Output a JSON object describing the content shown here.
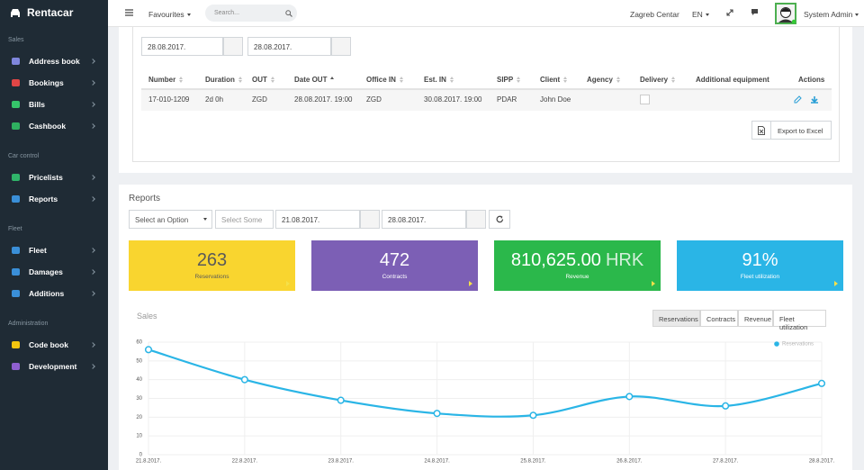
{
  "sidebar": {
    "brand": "Rentacar",
    "sections": [
      {
        "title": "Sales",
        "items": [
          "Address book",
          "Bookings",
          "Bills",
          "Cashbook"
        ]
      },
      {
        "title": "Car control",
        "items": [
          "Pricelists",
          "Reports"
        ]
      },
      {
        "title": "Fleet",
        "items": [
          "Fleet",
          "Damages",
          "Additions"
        ]
      },
      {
        "title": "Administration",
        "items": [
          "Code book",
          "Development"
        ]
      }
    ]
  },
  "topbar": {
    "favourites": "Favourites",
    "search_placeholder": "Search...",
    "location": "Zagreb Centar",
    "language": "EN",
    "user": "System Admin"
  },
  "bookings": {
    "date_from": "28.08.2017.",
    "date_to": "28.08.2017.",
    "table": {
      "columns": [
        "Number",
        "Duration",
        "OUT",
        "Date OUT",
        "Office IN",
        "Est. IN",
        "SIPP",
        "Client",
        "Agency",
        "Delivery",
        "Additional equipment",
        "Actions"
      ],
      "rows": [
        [
          "17-010-1209",
          "2d 0h",
          "ZGD",
          "28.08.2017. 19:00",
          "ZGD",
          "30.08.2017. 19:00",
          "PDAR",
          "John Doe"
        ]
      ]
    },
    "export": "Export to Excel"
  },
  "reports": {
    "title": "Reports",
    "filter_option": "Select an Option",
    "filter_some": "Select Some",
    "date_from": "21.08.2017.",
    "date_to": "28.08.2017.",
    "tiles": [
      {
        "value": "263",
        "label": "Reservations",
        "color": "#f9d52f",
        "text_color": "#5a5a5a"
      },
      {
        "value": "472",
        "label": "Contracts",
        "color": "#7c5fb5",
        "text_color": "#ffffff"
      },
      {
        "value": "810,625.00",
        "unit": "HRK",
        "label": "Revenue",
        "color": "#2bb84b",
        "text_color": "#ffffff"
      },
      {
        "value": "91%",
        "label": "Fleet utilization",
        "color": "#2ab5e6",
        "text_color": "#ffffff"
      }
    ],
    "sales_title": "Sales",
    "tabs": [
      "Reservations",
      "Contracts",
      "Revenue",
      "Fleet utilization"
    ]
  },
  "chart_data": {
    "type": "line",
    "categories": [
      "21.8.2017.",
      "22.8.2017.",
      "23.8.2017.",
      "24.8.2017.",
      "25.8.2017.",
      "26.8.2017.",
      "27.8.2017.",
      "28.8.2017."
    ],
    "series": [
      {
        "name": "Reservations",
        "color": "#2ab5e6",
        "values": [
          56,
          40,
          29,
          22,
          21,
          31,
          26,
          38
        ]
      }
    ],
    "ylim": [
      0,
      60
    ],
    "yticks": [
      0,
      10,
      20,
      30,
      40,
      50,
      60
    ],
    "grid": true,
    "legend": "top-right"
  }
}
